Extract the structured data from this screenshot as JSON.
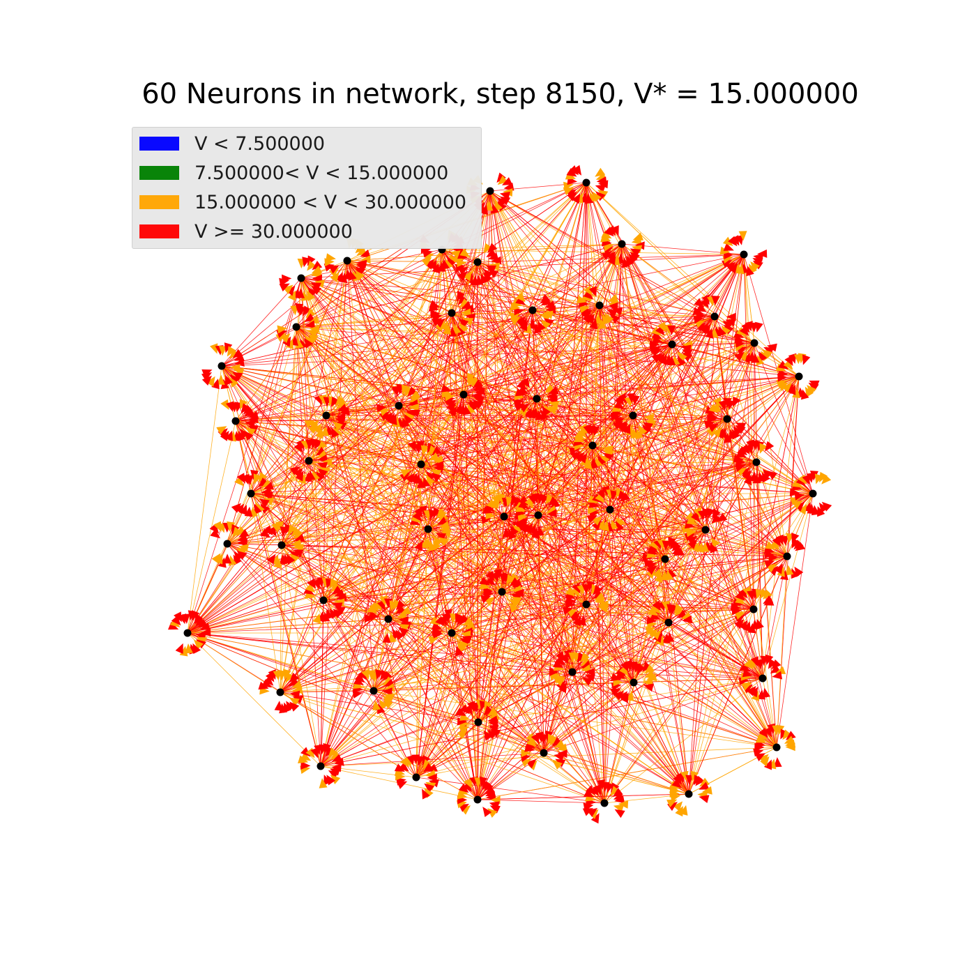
{
  "title": "60 Neurons in network, step 8150, V* = 15.000000",
  "legend": {
    "location": "upper-left",
    "entries": [
      {
        "label": "V < 7.500000",
        "color": "#0000ff"
      },
      {
        "label": "7.500000< V < 15.000000",
        "color": "#008000"
      },
      {
        "label": "15.000000 < V < 30.000000",
        "color": "#ffa500"
      },
      {
        "label": "V >= 30.000000",
        "color": "#ff0000"
      }
    ]
  },
  "colors": {
    "node": "#000000",
    "edge_high": "#ff0000",
    "edge_mid": "#ffa500",
    "background": "#ffffff"
  },
  "graph": {
    "node_count": 60
  }
}
